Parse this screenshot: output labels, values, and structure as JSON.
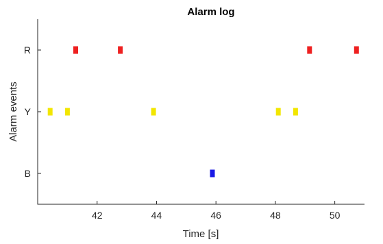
{
  "chart_data": {
    "type": "scatter",
    "title": "Alarm log",
    "xlabel": "Time [s]",
    "ylabel": "Alarm events",
    "xlim": [
      40.0,
      51.0
    ],
    "xticks": [
      "42",
      "44",
      "46",
      "48",
      "50"
    ],
    "xtick_values": [
      42,
      44,
      46,
      48,
      50
    ],
    "categories": [
      "B",
      "Y",
      "R"
    ],
    "grid": false,
    "series": [
      {
        "category": "R",
        "color": "#ee2020",
        "x": [
          41.28,
          42.78,
          49.15,
          50.73
        ]
      },
      {
        "category": "Y",
        "color": "#f2e600",
        "x": [
          40.42,
          41.0,
          43.9,
          48.1,
          48.68
        ]
      },
      {
        "category": "B",
        "color": "#1a1ae6",
        "x": [
          45.88
        ]
      }
    ]
  }
}
